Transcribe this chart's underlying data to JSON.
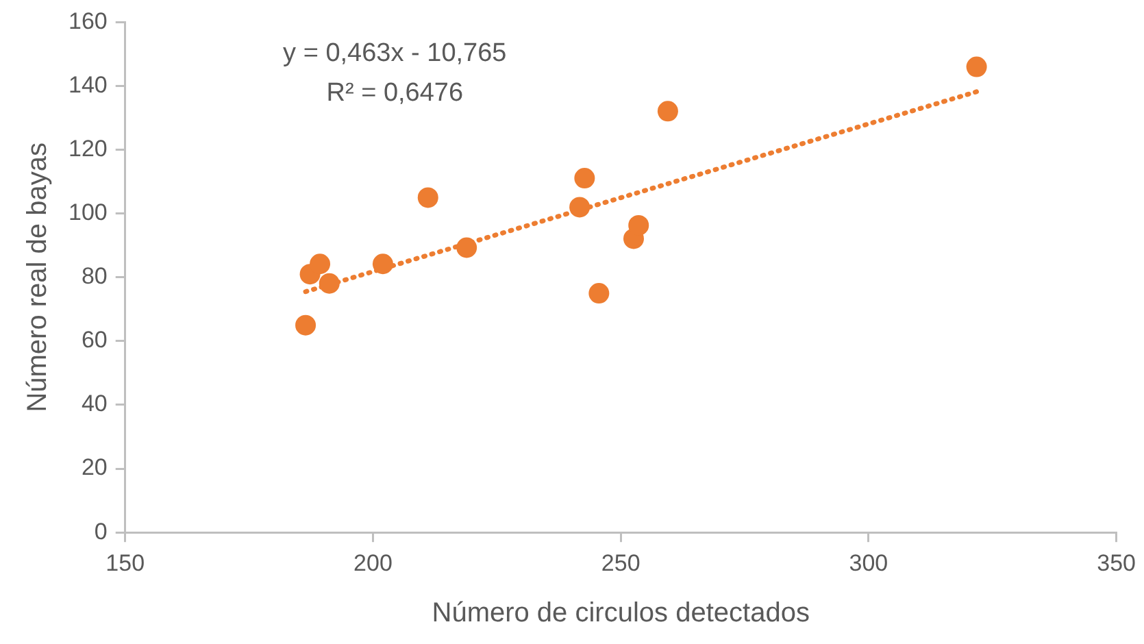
{
  "chart_data": {
    "type": "scatter",
    "xlabel": "Número de circulos detectados",
    "ylabel": "Número real de bayas",
    "xlim": [
      150,
      350
    ],
    "xticks": [
      150,
      200,
      250,
      300,
      350
    ],
    "ylim": [
      0,
      160
    ],
    "yticks": [
      0,
      20,
      40,
      60,
      80,
      100,
      120,
      140,
      160
    ],
    "grid": false,
    "legend": false,
    "marker": "circle",
    "series": [
      {
        "type": "scatter",
        "color": "#ed7d31",
        "x": [
          186.4,
          187.3,
          189.3,
          191.2,
          202.0,
          211.1,
          218.9,
          241.7,
          242.7,
          245.6,
          252.6,
          253.6,
          259.5,
          321.8
        ],
        "values": [
          65.0,
          81.0,
          84.2,
          78.1,
          84.2,
          105.0,
          89.3,
          102.0,
          111.1,
          75.0,
          92.1,
          96.3,
          132.1,
          146.0
        ]
      },
      {
        "type": "line",
        "color": "#ed7d31",
        "x": [
          186.4,
          321.8
        ],
        "values": [
          75.5,
          138.2
        ],
        "line_style": "dotted",
        "marker": "none"
      }
    ],
    "annotations": [
      "y = 0,463x - 10,765",
      "R² = 0,6476"
    ]
  }
}
